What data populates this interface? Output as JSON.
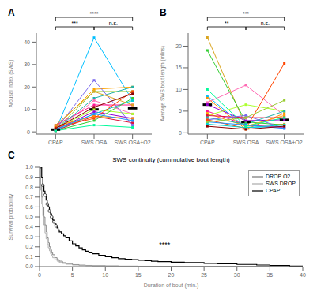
{
  "chart_data": [
    {
      "type": "line",
      "title": "A",
      "categories": [
        "CPAP",
        "SWS OSA",
        "SWS OSA+O2"
      ],
      "ylabel": "Arousal Index (SWS)",
      "series": [
        {
          "color": "#00bfff",
          "values": [
            0.5,
            42,
            14
          ]
        },
        {
          "color": "#9acd32",
          "values": [
            1.0,
            18,
            18
          ]
        },
        {
          "color": "#ff69b4",
          "values": [
            0.5,
            14,
            8
          ]
        },
        {
          "color": "#ffa500",
          "values": [
            2.0,
            19,
            20
          ]
        },
        {
          "color": "#9400d3",
          "values": [
            1.0,
            9,
            6
          ]
        },
        {
          "color": "#00ced1",
          "values": [
            0.5,
            8,
            14
          ]
        },
        {
          "color": "#ff1493",
          "values": [
            3.0,
            12,
            12
          ]
        },
        {
          "color": "#adff2f",
          "values": [
            1.5,
            10,
            8
          ]
        },
        {
          "color": "#dc143c",
          "values": [
            0.5,
            7,
            4
          ]
        },
        {
          "color": "#20b2aa",
          "values": [
            1.0,
            15,
            20
          ]
        },
        {
          "color": "#ff8c00",
          "values": [
            2.5,
            7,
            6
          ]
        },
        {
          "color": "#7b68ee",
          "values": [
            1.0,
            23,
            3
          ]
        },
        {
          "color": "#32cd32",
          "values": [
            0.5,
            5,
            15
          ]
        },
        {
          "color": "#ff4500",
          "values": [
            2.0,
            6,
            18
          ]
        },
        {
          "color": "#1e90ff",
          "values": [
            1.0,
            8,
            5
          ]
        },
        {
          "color": "#daa520",
          "values": [
            3.0,
            18,
            12
          ]
        },
        {
          "color": "#00fa9a",
          "values": [
            0.5,
            3,
            2
          ]
        },
        {
          "color": "#8b0000",
          "values": [
            1.5,
            11,
            17
          ]
        }
      ],
      "means": {
        "values": [
          1.0,
          10.0,
          10.5
        ],
        "color": "black"
      },
      "marker": "square",
      "ylim": [
        -1,
        44
      ],
      "yticks": [
        0,
        10,
        20,
        30,
        40
      ],
      "grid": false,
      "annotations": [
        {
          "text": "****",
          "from": "CPAP",
          "to": "SWS OSA+O2"
        },
        {
          "text": "***",
          "from": "CPAP",
          "to": "SWS OSA"
        },
        {
          "text": "n.s.",
          "from": "SWS OSA",
          "to": "SWS OSA+O2"
        }
      ]
    },
    {
      "type": "line",
      "title": "B",
      "categories": [
        "CPAP",
        "SWS OSA",
        "SWS OSA+O2"
      ],
      "ylabel": "Average SWS bout length (mlins)",
      "series": [
        {
          "color": "#daa520",
          "values": [
            22,
            1.5,
            2.0
          ]
        },
        {
          "color": "#32cd32",
          "values": [
            19,
            2.5,
            1.8
          ]
        },
        {
          "color": "#00bfff",
          "values": [
            8.5,
            1.2,
            1.5
          ]
        },
        {
          "color": "#ff8c00",
          "values": [
            8,
            0.8,
            4.5
          ]
        },
        {
          "color": "#ff69b4",
          "values": [
            7,
            11,
            4
          ]
        },
        {
          "color": "#9400d3",
          "values": [
            6.5,
            2.8,
            3.0
          ]
        },
        {
          "color": "#ff1493",
          "values": [
            5,
            1.8,
            1.2
          ]
        },
        {
          "color": "#ffa500",
          "values": [
            4.5,
            1.5,
            4
          ]
        },
        {
          "color": "#adff2f",
          "values": [
            4,
            6.5,
            5
          ]
        },
        {
          "color": "#dc143c",
          "values": [
            4,
            3.5,
            3.5
          ]
        },
        {
          "color": "#20b2aa",
          "values": [
            3.5,
            2.0,
            5
          ]
        },
        {
          "color": "#7b68ee",
          "values": [
            3,
            4.0,
            1.0
          ]
        },
        {
          "color": "#ff4500",
          "values": [
            3,
            1.0,
            16
          ]
        },
        {
          "color": "#1e90ff",
          "values": [
            2.5,
            1.8,
            1.0
          ]
        },
        {
          "color": "#9acd32",
          "values": [
            2.5,
            3.5,
            7.5
          ]
        },
        {
          "color": "#00ced1",
          "values": [
            2,
            1.2,
            1.8
          ]
        },
        {
          "color": "#8b0000",
          "values": [
            1.5,
            0.8,
            1.5
          ]
        },
        {
          "color": "#00fa9a",
          "values": [
            10,
            1.5,
            3.5
          ]
        }
      ],
      "means": {
        "values": [
          6.5,
          2.5,
          3.0
        ],
        "color": "black"
      },
      "marker": "square",
      "ylim": [
        -0.3,
        23
      ],
      "yticks": [
        0,
        5,
        10,
        15,
        20
      ],
      "grid": false,
      "annotations": [
        {
          "text": "***",
          "from": "CPAP",
          "to": "SWS OSA+O2"
        },
        {
          "text": "**",
          "from": "CPAP",
          "to": "SWS OSA"
        },
        {
          "text": "n.s.",
          "from": "SWS OSA",
          "to": "SWS OSA+O2"
        }
      ]
    },
    {
      "type": "step",
      "title": "SWS continuity (cummulative bout length)",
      "xlabel": "Duration of bout (min.)",
      "ylabel": "Survival probability",
      "series": [
        {
          "name": "DROP O2",
          "color": "#777777",
          "x": [
            0,
            0.17,
            0.33,
            0.5,
            0.67,
            0.83,
            1.0,
            1.17,
            1.33,
            1.5,
            1.67,
            1.83,
            2.0,
            2.33,
            2.67,
            3.0,
            3.5,
            4.0,
            5.0,
            6.0,
            7.0,
            8.0,
            10.0,
            12.0,
            15.0,
            18.0,
            20.0,
            25.0,
            30.0,
            40.0
          ],
          "values": [
            1.0,
            0.82,
            0.7,
            0.6,
            0.5,
            0.42,
            0.35,
            0.29,
            0.24,
            0.2,
            0.17,
            0.14,
            0.12,
            0.09,
            0.07,
            0.055,
            0.04,
            0.03,
            0.02,
            0.015,
            0.012,
            0.009,
            0.007,
            0.005,
            0.004,
            0.003,
            0.002,
            0.001,
            0.001,
            0.0
          ]
        },
        {
          "name": "SWS DROP",
          "color": "#aaaaaa",
          "x": [
            0,
            0.17,
            0.33,
            0.5,
            0.67,
            0.83,
            1.0,
            1.17,
            1.33,
            1.5,
            1.67,
            1.83,
            2.0,
            2.33,
            2.67,
            3.0,
            3.5,
            4.0,
            5.0,
            6.0,
            7.0,
            8.0,
            10.0,
            12.0,
            15.0,
            18.0,
            20.0,
            25.0,
            30.0,
            40.0
          ],
          "values": [
            1.0,
            0.77,
            0.63,
            0.51,
            0.42,
            0.34,
            0.28,
            0.23,
            0.19,
            0.16,
            0.13,
            0.11,
            0.09,
            0.07,
            0.055,
            0.042,
            0.032,
            0.024,
            0.016,
            0.012,
            0.009,
            0.007,
            0.005,
            0.004,
            0.003,
            0.002,
            0.001,
            0.001,
            0.0,
            0.0
          ]
        },
        {
          "name": "CPAP",
          "color": "black",
          "marker": "circle",
          "x": [
            0,
            0.33,
            0.5,
            0.67,
            0.83,
            1.0,
            1.17,
            1.33,
            1.5,
            1.67,
            1.83,
            2.0,
            2.17,
            2.33,
            2.5,
            2.67,
            2.83,
            3.0,
            3.33,
            3.67,
            4.0,
            4.5,
            5.0,
            5.5,
            6.0,
            6.5,
            7.0,
            7.5,
            8.0,
            9.0,
            10.0,
            11.0,
            12.0,
            13.0,
            14.0,
            15.0,
            16.0,
            17.0,
            18.0,
            20.0,
            22.0,
            25.0,
            27.0,
            30.0,
            33.0,
            35.0,
            38.0,
            40.0
          ],
          "values": [
            1.0,
            0.9,
            0.82,
            0.76,
            0.72,
            0.67,
            0.63,
            0.6,
            0.56,
            0.53,
            0.5,
            0.47,
            0.45,
            0.43,
            0.41,
            0.39,
            0.37,
            0.35,
            0.33,
            0.31,
            0.29,
            0.26,
            0.23,
            0.21,
            0.19,
            0.17,
            0.155,
            0.14,
            0.13,
            0.115,
            0.1,
            0.09,
            0.08,
            0.075,
            0.07,
            0.065,
            0.06,
            0.055,
            0.05,
            0.045,
            0.04,
            0.033,
            0.028,
            0.022,
            0.016,
            0.012,
            0.006,
            0.003
          ]
        }
      ],
      "xlim": [
        0,
        40
      ],
      "xticks": [
        0,
        5,
        10,
        15,
        20,
        25,
        30,
        35,
        40
      ],
      "ylim": [
        0,
        1
      ],
      "yticks": [
        {
          "value": 0,
          "label": "0.0"
        },
        0.1,
        0.2,
        0.3,
        0.4,
        0.5,
        0.6,
        0.7,
        0.8,
        0.9,
        {
          "value": 1,
          "label": "1.0"
        }
      ],
      "legend": "upper right",
      "grid": false,
      "annotations": [
        {
          "text": "C"
        },
        {
          "text": "****",
          "x": 19,
          "y": 0.22
        }
      ]
    }
  ]
}
